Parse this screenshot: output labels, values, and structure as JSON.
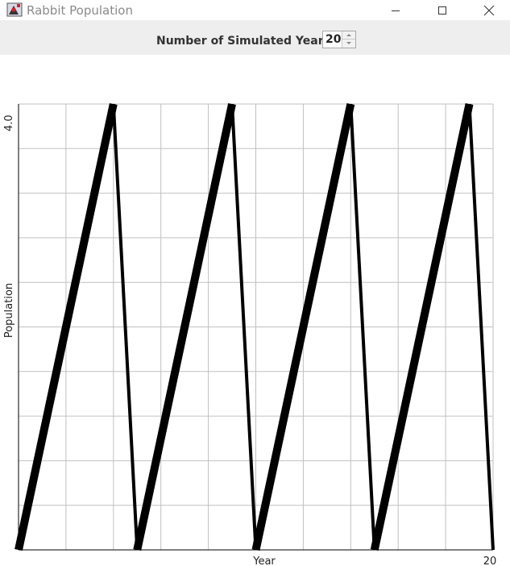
{
  "window": {
    "title": "Rabbit Population",
    "app_icon": "java-duke-icon",
    "minimize_icon": "minimize-icon",
    "maximize_icon": "maximize-icon",
    "close_icon": "close-icon"
  },
  "controls": {
    "years_label": "Number of Simulated Years:",
    "years_value": "20"
  },
  "chart_data": {
    "type": "line",
    "x": [
      0,
      4,
      5,
      9,
      10,
      14,
      15,
      19,
      20
    ],
    "y": [
      0,
      4,
      0,
      4,
      0,
      4,
      0,
      4,
      0
    ],
    "xlim": [
      0,
      20
    ],
    "ylim": [
      0,
      4
    ],
    "x_tick_labels": [
      "Year",
      "20"
    ],
    "y_tick_labels": [
      "4.0"
    ],
    "xlabel": "Year",
    "ylabel": "Population",
    "grid": true,
    "line_color": "#000000"
  }
}
